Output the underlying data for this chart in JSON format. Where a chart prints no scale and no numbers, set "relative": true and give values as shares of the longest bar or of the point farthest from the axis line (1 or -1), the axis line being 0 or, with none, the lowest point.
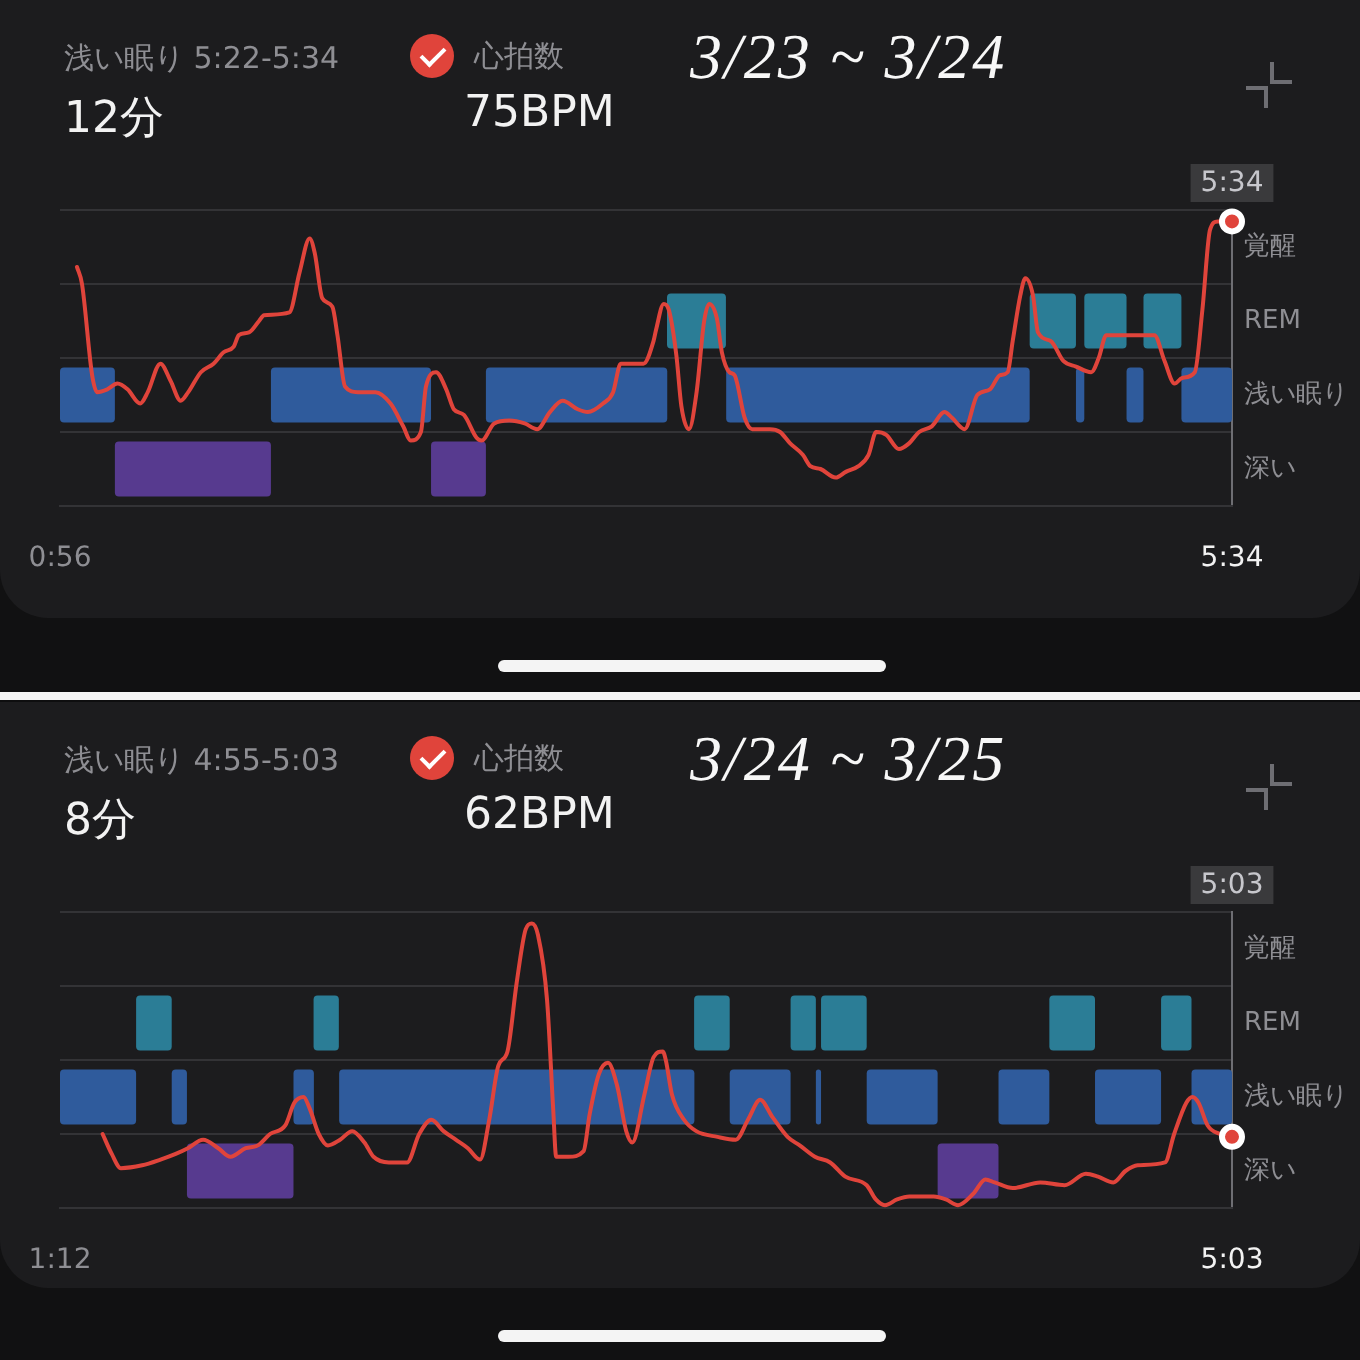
{
  "chart_data": [
    {
      "type": "bar",
      "orientation": "horizontal",
      "title": "3/23 ~ 3/24",
      "annotations": [
        "浅い眠り 5:22-5:34",
        "12分"
      ],
      "grid": "y",
      "categories": [
        "覚醒",
        "REM",
        "浅い眠り",
        "深い"
      ],
      "xlim": [
        0.933,
        5.567
      ],
      "xticks": [
        {
          "value": 0.933,
          "label": "0:56"
        },
        {
          "value": 5.567,
          "label": "5:34"
        }
      ],
      "series": [
        {
          "colors": [
            null,
            "#2b7d96",
            "#2f5b9c",
            "#573a8f"
          ],
          "base": [
            null,
            3.333,
            0.933,
            1.15
          ],
          "values": [
            null,
            0.233,
            0.217,
            0.617
          ]
        },
        {
          "colors": [
            null,
            "#2b7d96",
            "#2f5b9c",
            "#573a8f"
          ],
          "base": [
            null,
            4.767,
            1.767,
            2.4
          ],
          "values": [
            null,
            0.183,
            0.633,
            0.217
          ]
        },
        {
          "colors": [
            null,
            "#2b7d96",
            "#2f5b9c",
            "#573a8f"
          ],
          "base": [
            null,
            4.983,
            2.617,
            null
          ],
          "values": [
            null,
            0.167,
            0.717,
            null
          ]
        },
        {
          "colors": [
            null,
            "#2b7d96",
            "#2f5b9c",
            "#573a8f"
          ],
          "base": [
            null,
            5.217,
            3.567,
            null
          ],
          "values": [
            null,
            0.15,
            1.2,
            null
          ]
        },
        {
          "colors": [
            null,
            "#2b7d96",
            "#2f5b9c",
            "#573a8f"
          ],
          "base": [
            null,
            null,
            4.95,
            null
          ],
          "values": [
            null,
            null,
            0.033,
            null
          ]
        },
        {
          "colors": [
            null,
            "#2b7d96",
            "#2f5b9c",
            "#573a8f"
          ],
          "base": [
            null,
            null,
            5.15,
            null
          ],
          "values": [
            null,
            null,
            0.067,
            null
          ]
        },
        {
          "colors": [
            null,
            "#2b7d96",
            "#2f5b9c",
            "#573a8f"
          ],
          "base": [
            null,
            null,
            5.367,
            null
          ],
          "values": [
            null,
            null,
            0.2,
            null
          ]
        }
      ]
    },
    {
      "type": "line",
      "relative": true,
      "legend": "top",
      "annotations": [
        "75BPM",
        "5:34"
      ],
      "xlim": [
        0.933,
        5.567
      ],
      "series": [
        {
          "name": "心拍数",
          "color": "#e0443b",
          "x": [
            1.0,
            1.02,
            1.06,
            1.08,
            1.12,
            1.16,
            1.2,
            1.25,
            1.28,
            1.33,
            1.37,
            1.41,
            1.44,
            1.49,
            1.54,
            1.58,
            1.62,
            1.64,
            1.68,
            1.72,
            1.74,
            1.84,
            1.88,
            1.92,
            1.94,
            1.97,
            2.01,
            2.03,
            2.06,
            2.11,
            2.18,
            2.24,
            2.29,
            2.32,
            2.36,
            2.38,
            2.42,
            2.46,
            2.49,
            2.53,
            2.58,
            2.6,
            2.65,
            2.71,
            2.77,
            2.82,
            2.87,
            2.92,
            2.98,
            3.02,
            3.08,
            3.12,
            3.15,
            3.24,
            3.28,
            3.29,
            3.32,
            3.34,
            3.37,
            3.39,
            3.42,
            3.45,
            3.48,
            3.5,
            3.53,
            3.55,
            3.58,
            3.6,
            3.64,
            3.67,
            3.74,
            3.78,
            3.82,
            3.87,
            3.9,
            3.94,
            4.0,
            4.04,
            4.09,
            4.13,
            4.16,
            4.2,
            4.25,
            4.29,
            4.33,
            4.38,
            4.43,
            4.46,
            4.51,
            4.56,
            4.61,
            4.65,
            4.68,
            4.7,
            4.73,
            4.75,
            4.78,
            4.8,
            4.85,
            4.9,
            4.95,
            5.01,
            5.04,
            5.07,
            5.14,
            5.26,
            5.3,
            5.34,
            5.37,
            5.42,
            5.45,
            5.48,
            5.51,
            5.567
          ],
          "values": [
            0.84,
            0.78,
            0.46,
            0.4,
            0.41,
            0.43,
            0.41,
            0.36,
            0.4,
            0.5,
            0.44,
            0.37,
            0.4,
            0.47,
            0.5,
            0.54,
            0.56,
            0.6,
            0.61,
            0.65,
            0.67,
            0.68,
            0.82,
            0.94,
            0.89,
            0.73,
            0.7,
            0.6,
            0.42,
            0.4,
            0.4,
            0.36,
            0.28,
            0.23,
            0.26,
            0.42,
            0.47,
            0.41,
            0.34,
            0.32,
            0.24,
            0.23,
            0.29,
            0.3,
            0.29,
            0.27,
            0.33,
            0.37,
            0.34,
            0.33,
            0.36,
            0.4,
            0.5,
            0.5,
            0.58,
            0.62,
            0.71,
            0.69,
            0.53,
            0.35,
            0.27,
            0.4,
            0.65,
            0.71,
            0.66,
            0.54,
            0.47,
            0.46,
            0.31,
            0.27,
            0.27,
            0.26,
            0.22,
            0.18,
            0.14,
            0.13,
            0.1,
            0.12,
            0.14,
            0.18,
            0.26,
            0.25,
            0.2,
            0.22,
            0.26,
            0.28,
            0.33,
            0.31,
            0.27,
            0.39,
            0.41,
            0.46,
            0.47,
            0.58,
            0.74,
            0.8,
            0.74,
            0.61,
            0.58,
            0.51,
            0.49,
            0.47,
            0.52,
            0.6,
            0.6,
            0.6,
            0.51,
            0.43,
            0.45,
            0.47,
            0.69,
            0.97,
            1.0,
            1.0
          ]
        },
        {
          "type": "scatter",
          "color": "#e0443b",
          "marker": "circle",
          "x": [
            5.567
          ],
          "values": [
            1.0
          ]
        }
      ]
    },
    {
      "type": "bar",
      "orientation": "horizontal",
      "title": "3/24 ~ 3/25",
      "annotations": [
        "浅い眠り 4:55-5:03",
        "8分"
      ],
      "grid": "y",
      "categories": [
        "覚醒",
        "REM",
        "浅い眠り",
        "深い"
      ],
      "xlim": [
        1.2,
        5.05
      ],
      "xticks": [
        {
          "value": 1.2,
          "label": "1:12"
        },
        {
          "value": 5.05,
          "label": "5:03"
        }
      ],
      "series": [
        {
          "colors": [
            null,
            "#2b7d96",
            "#2f5b9c",
            "#573a8f"
          ],
          "base": [
            null,
            1.45,
            1.2,
            1.617
          ],
          "values": [
            null,
            0.117,
            0.25,
            0.35
          ]
        },
        {
          "colors": [
            null,
            "#2b7d96",
            "#2f5b9c",
            "#573a8f"
          ],
          "base": [
            null,
            2.033,
            1.567,
            4.083
          ],
          "values": [
            null,
            0.083,
            0.05,
            0.2
          ]
        },
        {
          "colors": [
            null,
            "#2b7d96",
            "#2f5b9c",
            "#573a8f"
          ],
          "base": [
            null,
            3.283,
            1.967,
            null
          ],
          "values": [
            null,
            0.117,
            0.067,
            null
          ]
        },
        {
          "colors": [
            null,
            "#2b7d96",
            "#2f5b9c",
            "#573a8f"
          ],
          "base": [
            null,
            3.6,
            2.117,
            null
          ],
          "values": [
            null,
            0.083,
            1.167,
            null
          ]
        },
        {
          "colors": [
            null,
            "#2b7d96",
            "#2f5b9c",
            "#573a8f"
          ],
          "base": [
            null,
            3.7,
            3.4,
            null
          ],
          "values": [
            null,
            0.15,
            0.2,
            null
          ]
        },
        {
          "colors": [
            null,
            "#2b7d96",
            "#2f5b9c",
            "#573a8f"
          ],
          "base": [
            null,
            4.45,
            3.683,
            null
          ],
          "values": [
            null,
            0.15,
            0.017,
            null
          ]
        },
        {
          "colors": [
            null,
            "#2b7d96",
            "#2f5b9c",
            "#573a8f"
          ],
          "base": [
            null,
            4.817,
            3.85,
            null
          ],
          "values": [
            null,
            0.1,
            0.233,
            null
          ]
        },
        {
          "colors": [
            null,
            "#2b7d96",
            "#2f5b9c",
            "#573a8f"
          ],
          "base": [
            null,
            null,
            4.283,
            null
          ],
          "values": [
            null,
            null,
            0.167,
            null
          ]
        },
        {
          "colors": [
            null,
            "#2b7d96",
            "#2f5b9c",
            "#573a8f"
          ],
          "base": [
            null,
            null,
            4.6,
            null
          ],
          "values": [
            null,
            null,
            0.217,
            null
          ]
        },
        {
          "colors": [
            null,
            "#2b7d96",
            "#2f5b9c",
            "#573a8f"
          ],
          "base": [
            null,
            null,
            4.917,
            null
          ],
          "values": [
            null,
            null,
            0.133,
            null
          ]
        }
      ]
    },
    {
      "type": "line",
      "relative": true,
      "legend": "top",
      "annotations": [
        "62BPM",
        "5:03"
      ],
      "xlim": [
        1.2,
        5.05
      ],
      "series": [
        {
          "name": "心拍数",
          "color": "#e0443b",
          "x": [
            1.34,
            1.37,
            1.4,
            1.47,
            1.53,
            1.58,
            1.62,
            1.67,
            1.72,
            1.76,
            1.81,
            1.85,
            1.89,
            1.94,
            1.97,
            2.0,
            2.02,
            2.05,
            2.08,
            2.12,
            2.16,
            2.2,
            2.23,
            2.28,
            2.34,
            2.38,
            2.42,
            2.46,
            2.5,
            2.54,
            2.58,
            2.61,
            2.64,
            2.67,
            2.7,
            2.73,
            2.75,
            2.77,
            2.8,
            2.82,
            2.83,
            2.87,
            2.92,
            2.94,
            2.97,
            3.0,
            3.03,
            3.06,
            3.08,
            3.12,
            3.15,
            3.18,
            3.19,
            3.21,
            3.25,
            3.29,
            3.36,
            3.42,
            3.46,
            3.5,
            3.54,
            3.59,
            3.63,
            3.68,
            3.73,
            3.78,
            3.85,
            3.88,
            3.91,
            3.95,
            3.99,
            4.07,
            4.11,
            4.15,
            4.2,
            4.24,
            4.27,
            4.33,
            4.42,
            4.5,
            4.57,
            4.61,
            4.66,
            4.7,
            4.74,
            4.83,
            4.86,
            4.9,
            4.92,
            4.94,
            4.97,
            5.01,
            5.05
          ],
          "values": [
            0.26,
            0.19,
            0.14,
            0.15,
            0.17,
            0.19,
            0.21,
            0.24,
            0.21,
            0.18,
            0.21,
            0.22,
            0.26,
            0.29,
            0.37,
            0.39,
            0.35,
            0.26,
            0.22,
            0.24,
            0.27,
            0.23,
            0.18,
            0.16,
            0.16,
            0.26,
            0.31,
            0.27,
            0.24,
            0.21,
            0.17,
            0.31,
            0.5,
            0.55,
            0.79,
            0.98,
            1.0,
            0.96,
            0.73,
            0.35,
            0.18,
            0.18,
            0.2,
            0.33,
            0.47,
            0.51,
            0.43,
            0.27,
            0.23,
            0.4,
            0.53,
            0.55,
            0.52,
            0.4,
            0.31,
            0.27,
            0.25,
            0.24,
            0.31,
            0.38,
            0.32,
            0.25,
            0.22,
            0.18,
            0.16,
            0.11,
            0.08,
            0.03,
            0.01,
            0.03,
            0.04,
            0.04,
            0.03,
            0.01,
            0.05,
            0.1,
            0.09,
            0.07,
            0.09,
            0.08,
            0.12,
            0.11,
            0.09,
            0.13,
            0.15,
            0.16,
            0.26,
            0.37,
            0.39,
            0.37,
            0.29,
            0.26,
            0.25
          ]
        },
        {
          "type": "scatter",
          "color": "#e0443b",
          "marker": "circle",
          "x": [
            5.05
          ],
          "values": [
            0.25
          ]
        }
      ]
    }
  ]
}
